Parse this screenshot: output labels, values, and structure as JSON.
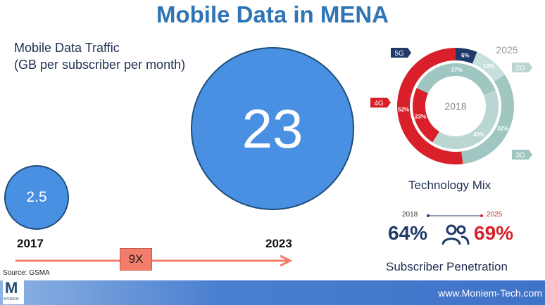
{
  "title": "Mobile Data in MENA",
  "chart_data": [
    {
      "type": "bubble",
      "title": "Mobile Data Traffic",
      "subtitle": "(GB per subscriber per month)",
      "categories": [
        "2017",
        "2023"
      ],
      "values": [
        2.5,
        23
      ],
      "value_labels": [
        "2.5",
        "23"
      ],
      "multiplier_label": "9X",
      "colors": {
        "bubble": "#4a90e2",
        "arrow": "#f47c6b"
      }
    },
    {
      "type": "pie",
      "title": "Technology Mix",
      "center_label": "2018",
      "outer_label": "2025",
      "rings": [
        {
          "name": "2018",
          "slices": [
            {
              "label": "4G",
              "value": 23,
              "text": "23%",
              "color": "#d9202a"
            },
            {
              "label": "3G",
              "value": 37,
              "text": "37%",
              "color": "#9fc6c1"
            },
            {
              "label": "2G",
              "value": 40,
              "text": "40%",
              "color": "#b9d6d2"
            }
          ]
        },
        {
          "name": "2025",
          "slices": [
            {
              "label": "5G",
              "value": 6,
              "text": "6%",
              "color": "#1f3a68"
            },
            {
              "label": "2G",
              "value": 10,
              "text": "10%",
              "color": "#c7e0dd"
            },
            {
              "label": "3G",
              "value": 32,
              "text": "32%",
              "color": "#9fc6c1"
            },
            {
              "label": "4G",
              "value": 52,
              "text": "52%",
              "color": "#d9202a"
            }
          ]
        }
      ],
      "legend": [
        {
          "label": "5G",
          "color": "#1f3a68"
        },
        {
          "label": "4G",
          "color": "#d9202a"
        },
        {
          "label": "2G",
          "color": "#b9d6d2"
        },
        {
          "label": "3G",
          "color": "#9fc6c1"
        }
      ]
    },
    {
      "type": "kpi",
      "title": "Subscriber Penetration",
      "from_year": "2018",
      "to_year": "2025",
      "from_value": "64%",
      "to_value": "69%",
      "colors": {
        "from": "#1f3a68",
        "to": "#d9202a"
      },
      "icon": "people-icon"
    }
  ],
  "source": "Source: GSMA",
  "footer": {
    "url": "www.Moniem-Tech.com"
  },
  "logo": {
    "letter": "M",
    "text": "MONIEM"
  }
}
